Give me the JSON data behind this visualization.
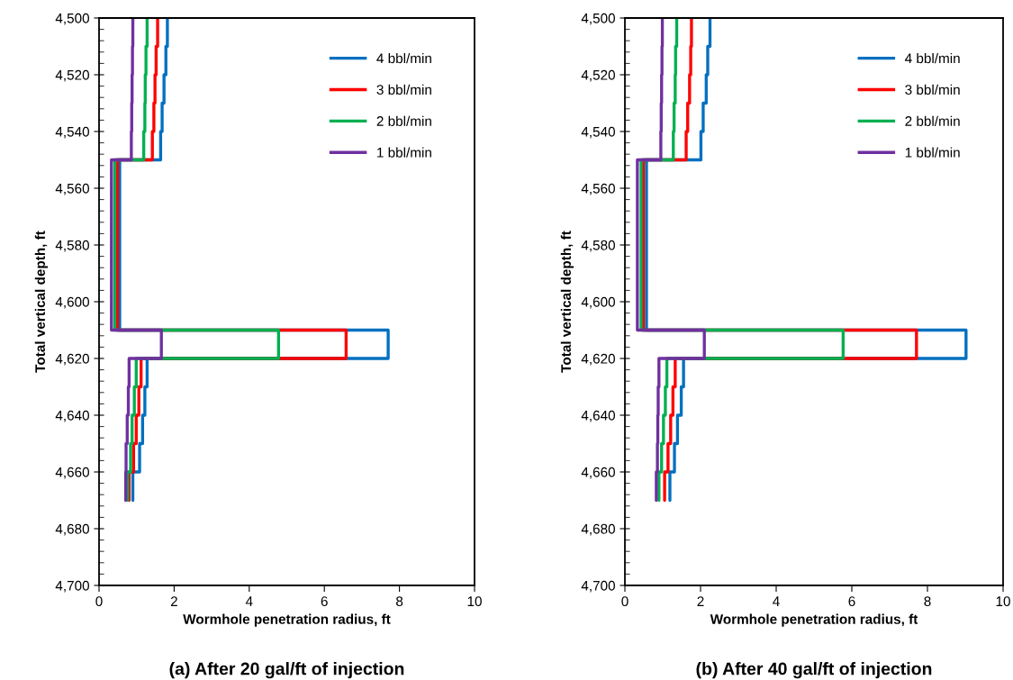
{
  "chart_data": [
    {
      "type": "line",
      "title": "(a) After 20 gal/ft of injection",
      "xlabel": "Wormhole penetration radius, ft",
      "ylabel": "Total vertical depth, ft",
      "xlim": [
        0,
        10
      ],
      "xticks": [
        0,
        2,
        4,
        6,
        8,
        10
      ],
      "ylim": [
        4700,
        4500
      ],
      "yticks": [
        {
          "value": 4500,
          "label": "4,500"
        },
        {
          "value": 4520,
          "label": "4,520"
        },
        {
          "value": 4540,
          "label": "4,540"
        },
        {
          "value": 4560,
          "label": "4,560"
        },
        {
          "value": 4580,
          "label": "4,580"
        },
        {
          "value": 4600,
          "label": "4,600"
        },
        {
          "value": 4620,
          "label": "4,620"
        },
        {
          "value": 4640,
          "label": "4,640"
        },
        {
          "value": 4660,
          "label": "4,660"
        },
        {
          "value": 4680,
          "label": "4,680"
        },
        {
          "value": 4700,
          "label": "4,700"
        }
      ],
      "legend": "top right",
      "grid": false,
      "marker": "none",
      "line_style": "solid",
      "series": [
        {
          "name": "4 bbl/min",
          "color": "#0070c0",
          "x": [
            1.82,
            1.82,
            1.78,
            1.78,
            1.73,
            1.73,
            1.68,
            1.68,
            1.64,
            1.64,
            0.55,
            0.55,
            7.7,
            7.7,
            1.28,
            1.28,
            1.22,
            1.22,
            1.16,
            1.16,
            1.08,
            1.08,
            0.9,
            0.9
          ],
          "values": [
            4500,
            4510,
            4510,
            4520,
            4520,
            4530,
            4530,
            4540,
            4540,
            4550,
            4550,
            4610,
            4610,
            4620,
            4620,
            4630,
            4630,
            4640,
            4640,
            4650,
            4650,
            4660,
            4660,
            4670
          ]
        },
        {
          "name": "3 bbl/min",
          "color": "#ff0000",
          "x": [
            1.56,
            1.56,
            1.52,
            1.52,
            1.49,
            1.49,
            1.46,
            1.46,
            1.42,
            1.42,
            0.49,
            0.49,
            6.58,
            6.58,
            1.12,
            1.12,
            1.06,
            1.06,
            0.99,
            0.99,
            0.92,
            0.92,
            0.8,
            0.8
          ],
          "values": [
            4500,
            4510,
            4510,
            4520,
            4520,
            4530,
            4530,
            4540,
            4540,
            4550,
            4550,
            4610,
            4610,
            4620,
            4620,
            4630,
            4630,
            4640,
            4640,
            4650,
            4650,
            4660,
            4660,
            4670
          ]
        },
        {
          "name": "2 bbl/min",
          "color": "#00b050",
          "x": [
            1.28,
            1.28,
            1.25,
            1.25,
            1.23,
            1.23,
            1.22,
            1.22,
            1.19,
            1.19,
            0.42,
            0.42,
            4.78,
            4.78,
            0.99,
            0.99,
            0.94,
            0.94,
            0.88,
            0.88,
            0.84,
            0.84,
            0.76,
            0.76
          ],
          "values": [
            4500,
            4510,
            4510,
            4520,
            4520,
            4530,
            4530,
            4540,
            4540,
            4550,
            4550,
            4610,
            4610,
            4620,
            4620,
            4630,
            4630,
            4640,
            4640,
            4650,
            4650,
            4660,
            4660,
            4670
          ]
        },
        {
          "name": "1 bbl/min",
          "color": "#7030a0",
          "x": [
            0.9,
            0.9,
            0.89,
            0.89,
            0.88,
            0.88,
            0.87,
            0.87,
            0.86,
            0.86,
            0.33,
            0.33,
            1.66,
            1.66,
            0.8,
            0.8,
            0.78,
            0.78,
            0.75,
            0.75,
            0.72,
            0.72,
            0.71,
            0.71
          ],
          "values": [
            4500,
            4510,
            4510,
            4520,
            4520,
            4530,
            4530,
            4540,
            4540,
            4550,
            4550,
            4610,
            4610,
            4620,
            4620,
            4630,
            4630,
            4640,
            4640,
            4650,
            4650,
            4660,
            4660,
            4670
          ]
        }
      ]
    },
    {
      "type": "line",
      "title": "(b) After 40 gal/ft of injection",
      "xlabel": "Wormhole penetration radius, ft",
      "ylabel": "Total vertical depth, ft",
      "xlim": [
        0,
        10
      ],
      "xticks": [
        0,
        2,
        4,
        6,
        8,
        10
      ],
      "ylim": [
        4700,
        4500
      ],
      "yticks": [
        {
          "value": 4500,
          "label": "4,500"
        },
        {
          "value": 4520,
          "label": "4,520"
        },
        {
          "value": 4540,
          "label": "4,540"
        },
        {
          "value": 4560,
          "label": "4,560"
        },
        {
          "value": 4580,
          "label": "4,580"
        },
        {
          "value": 4600,
          "label": "4,600"
        },
        {
          "value": 4620,
          "label": "4,620"
        },
        {
          "value": 4640,
          "label": "4,640"
        },
        {
          "value": 4660,
          "label": "4,660"
        },
        {
          "value": 4680,
          "label": "4,680"
        },
        {
          "value": 4700,
          "label": "4,700"
        }
      ],
      "legend": "top right",
      "grid": false,
      "marker": "none",
      "line_style": "solid",
      "series": [
        {
          "name": "4 bbl/min",
          "color": "#0070c0",
          "x": [
            2.25,
            2.25,
            2.19,
            2.19,
            2.15,
            2.15,
            2.07,
            2.07,
            2.01,
            2.01,
            0.57,
            0.57,
            9.02,
            9.02,
            1.55,
            1.55,
            1.49,
            1.49,
            1.39,
            1.39,
            1.31,
            1.31,
            1.19,
            1.19
          ],
          "values": [
            4500,
            4510,
            4510,
            4520,
            4520,
            4530,
            4530,
            4540,
            4540,
            4550,
            4550,
            4610,
            4610,
            4620,
            4620,
            4630,
            4630,
            4640,
            4640,
            4650,
            4650,
            4660,
            4660,
            4670
          ]
        },
        {
          "name": "3 bbl/min",
          "color": "#ff0000",
          "x": [
            1.76,
            1.76,
            1.74,
            1.74,
            1.71,
            1.71,
            1.66,
            1.66,
            1.62,
            1.62,
            0.49,
            0.49,
            7.71,
            7.71,
            1.33,
            1.33,
            1.27,
            1.27,
            1.21,
            1.21,
            1.14,
            1.14,
            1.05,
            1.05
          ],
          "values": [
            4500,
            4510,
            4510,
            4520,
            4520,
            4530,
            4530,
            4540,
            4540,
            4550,
            4550,
            4610,
            4610,
            4620,
            4620,
            4630,
            4630,
            4640,
            4640,
            4650,
            4650,
            4660,
            4660,
            4670
          ]
        },
        {
          "name": "2 bbl/min",
          "color": "#00b050",
          "x": [
            1.37,
            1.37,
            1.34,
            1.34,
            1.33,
            1.33,
            1.3,
            1.3,
            1.28,
            1.28,
            0.43,
            0.43,
            5.77,
            5.77,
            1.11,
            1.11,
            1.07,
            1.07,
            1.02,
            1.02,
            0.97,
            0.97,
            0.9,
            0.9
          ],
          "values": [
            4500,
            4510,
            4510,
            4520,
            4520,
            4530,
            4530,
            4540,
            4540,
            4550,
            4550,
            4610,
            4610,
            4620,
            4620,
            4630,
            4630,
            4640,
            4640,
            4650,
            4650,
            4660,
            4660,
            4670
          ]
        },
        {
          "name": "1 bbl/min",
          "color": "#7030a0",
          "x": [
            0.99,
            0.99,
            0.98,
            0.98,
            0.97,
            0.97,
            0.96,
            0.96,
            0.95,
            0.95,
            0.33,
            0.33,
            2.1,
            2.1,
            0.9,
            0.9,
            0.88,
            0.88,
            0.87,
            0.87,
            0.86,
            0.86,
            0.83,
            0.83
          ],
          "values": [
            4500,
            4510,
            4510,
            4520,
            4520,
            4530,
            4530,
            4540,
            4540,
            4550,
            4550,
            4610,
            4610,
            4620,
            4620,
            4630,
            4630,
            4640,
            4640,
            4650,
            4650,
            4660,
            4660,
            4670
          ]
        }
      ]
    }
  ]
}
